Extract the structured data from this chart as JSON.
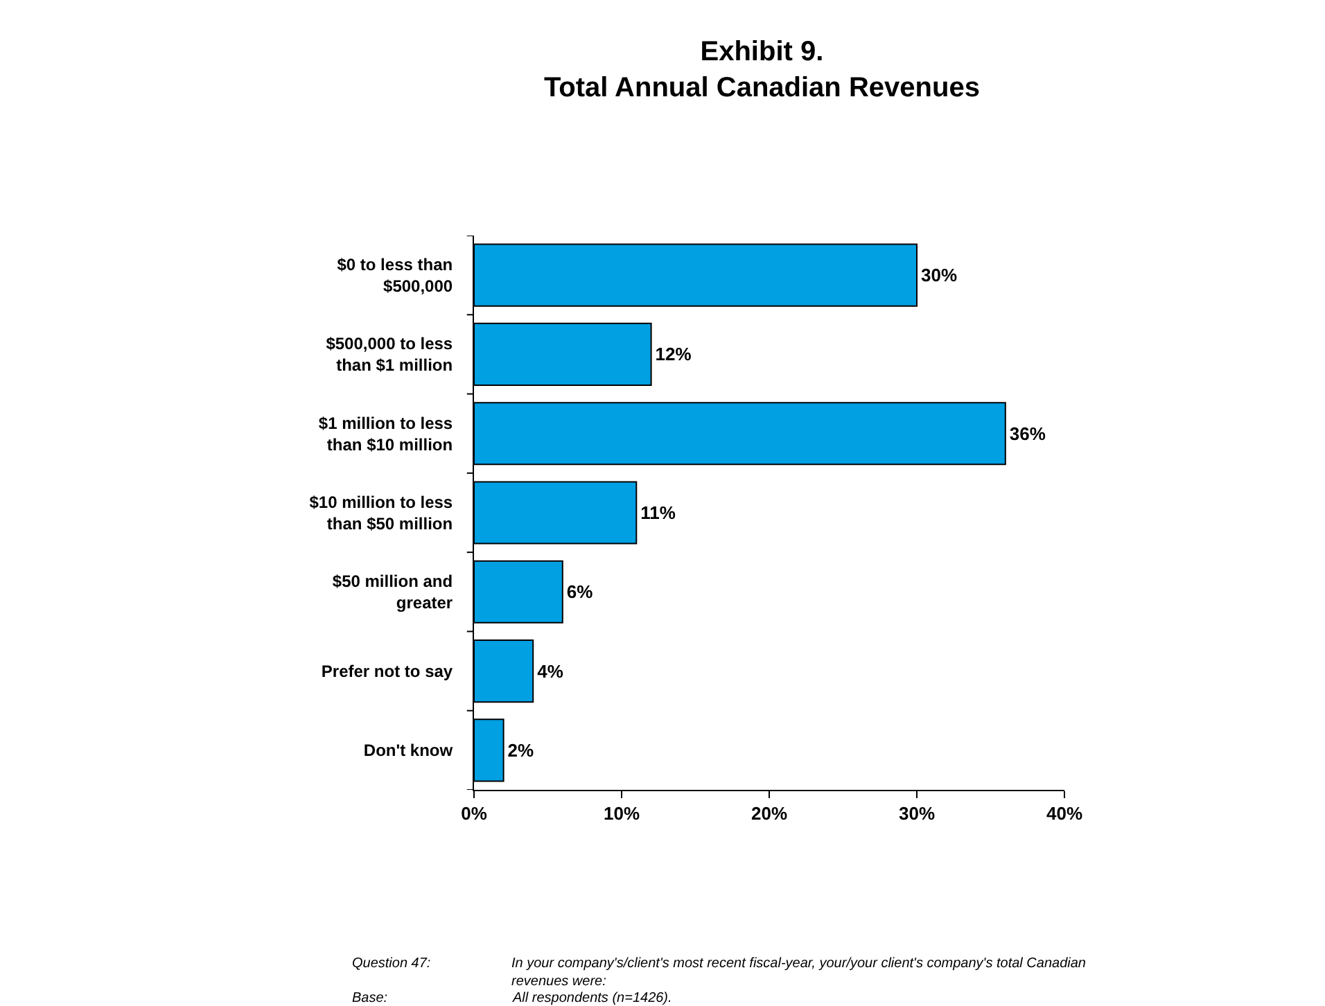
{
  "chart_data": {
    "type": "bar",
    "orientation": "horizontal",
    "title": "Exhibit 9.\nTotal Annual Canadian Revenues",
    "categories": [
      "$0 to less than\n$500,000",
      "$500,000 to less\nthan $1 million",
      "$1 million to less\nthan $10 million",
      "$10 million to less\nthan $50 million",
      "$50 million and\ngreater",
      "Prefer not to say",
      "Don't know"
    ],
    "values": [
      30,
      12,
      36,
      11,
      6,
      4,
      2
    ],
    "color": "#00a0e3",
    "value_labels": [
      "30%",
      "12%",
      "36%",
      "11%",
      "6%",
      "4%",
      "2%"
    ],
    "xlim": [
      0,
      40
    ],
    "xticks": [
      {
        "value": 0,
        "label": "0%"
      },
      {
        "value": 10,
        "label": "10%"
      },
      {
        "value": 20,
        "label": "20%"
      },
      {
        "value": 30,
        "label": "30%"
      },
      {
        "value": 40,
        "label": "40%"
      }
    ],
    "legend": false,
    "annotations": [
      "Question 47:",
      "In your company's/client's most recent fiscal-year, your/your client's company's total Canadian revenues were:",
      "Base:",
      "All respondents (n=1426)."
    ]
  }
}
